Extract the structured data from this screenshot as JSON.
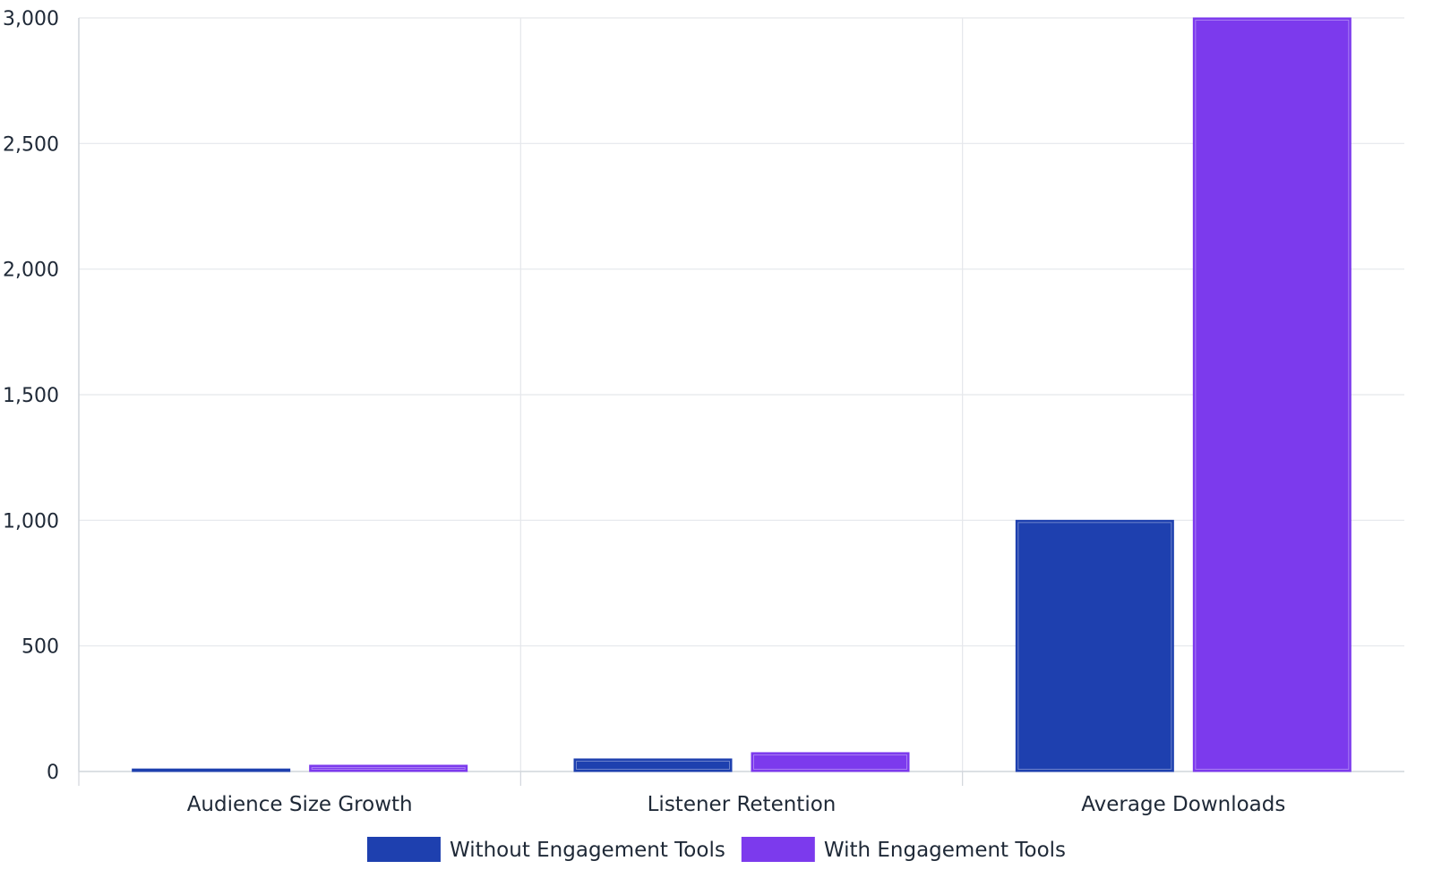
{
  "chart_data": {
    "type": "bar",
    "categories": [
      "Audience Size Growth",
      "Listener Retention",
      "Average Downloads"
    ],
    "series": [
      {
        "name": "Without Engagement Tools",
        "color": "#1e40af",
        "values": [
          10,
          50,
          1000
        ]
      },
      {
        "name": "With Engagement Tools",
        "color": "#7c3aed",
        "values": [
          25,
          75,
          3000
        ]
      }
    ],
    "ylim": [
      0,
      3000
    ],
    "yticks": [
      0,
      500,
      1000,
      1500,
      2000,
      2500,
      3000
    ],
    "ytick_labels": [
      "0",
      "500",
      "1,000",
      "1,500",
      "2,000",
      "2,500",
      "3,000"
    ],
    "grid": true,
    "legend_position": "bottom-center"
  }
}
